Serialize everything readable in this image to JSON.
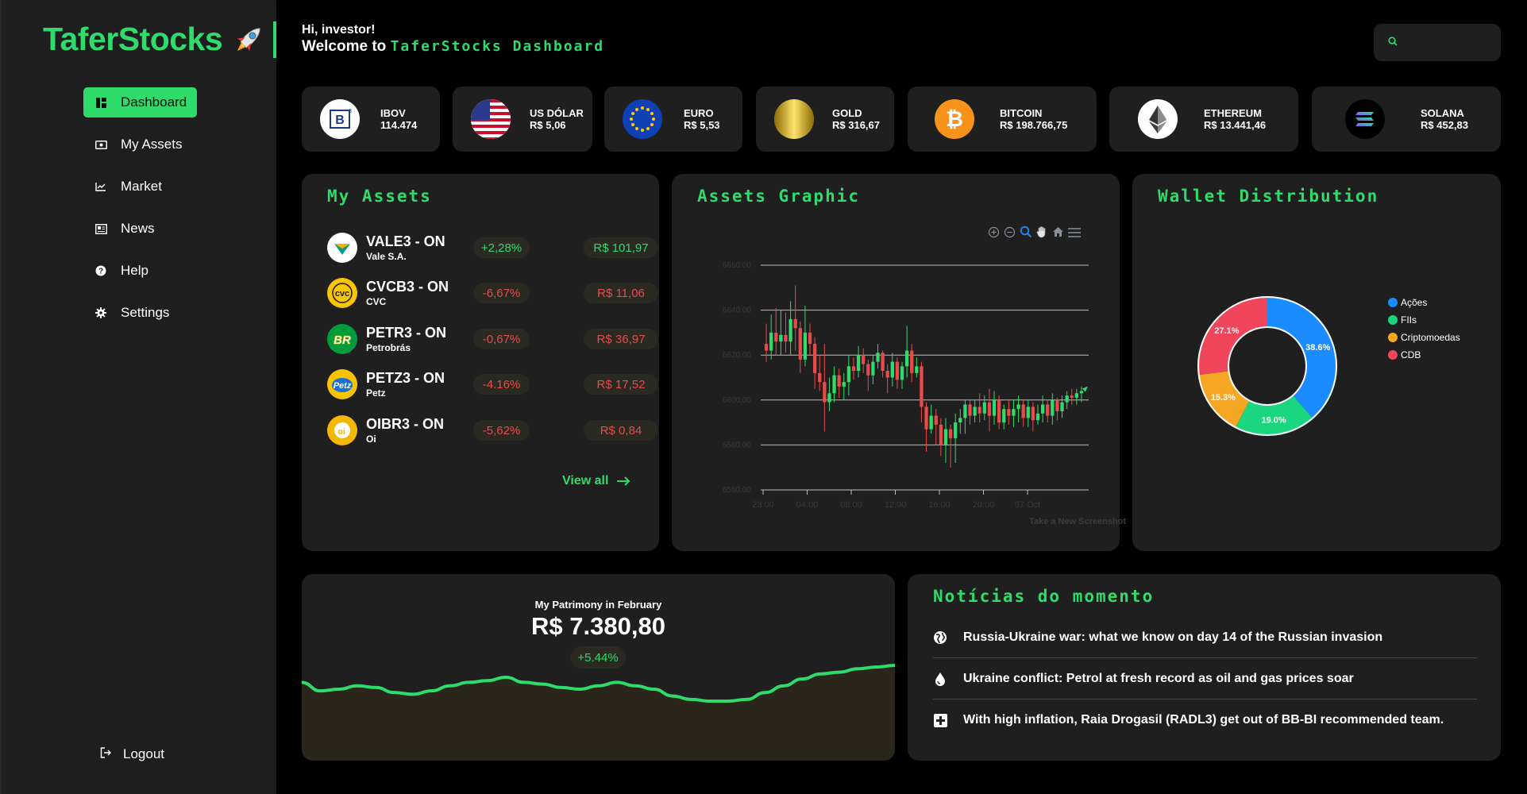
{
  "brand": {
    "name": "TaferStocks"
  },
  "nav": {
    "items": [
      {
        "label": "Dashboard",
        "icon": "dashboard-icon",
        "active": true
      },
      {
        "label": "My Assets",
        "icon": "wallet-icon"
      },
      {
        "label": "Market",
        "icon": "chart-line-icon"
      },
      {
        "label": "News",
        "icon": "newspaper-icon"
      },
      {
        "label": "Help",
        "icon": "help-icon"
      },
      {
        "label": "Settings",
        "icon": "gear-icon"
      }
    ],
    "logout": "Logout"
  },
  "header": {
    "greeting": "Hi, investor!",
    "welcome_prefix": "Welcome to ",
    "welcome_accent": "TaferStocks Dashboard"
  },
  "search": {
    "placeholder": ""
  },
  "tickers": [
    {
      "name": "IBOV",
      "value": "114.474"
    },
    {
      "name": "US DÓLAR",
      "value": "R$ 5,06"
    },
    {
      "name": "EURO",
      "value": "R$ 5,53"
    },
    {
      "name": "GOLD",
      "value": "R$ 316,67"
    },
    {
      "name": "BITCOIN",
      "value": "R$ 198.766,75"
    },
    {
      "name": "ETHEREUM",
      "value": "R$ 13.441,46"
    },
    {
      "name": "SOLANA",
      "value": "R$ 452,83"
    }
  ],
  "my_assets": {
    "title": "My Assets",
    "rows": [
      {
        "ticker": "VALE3 - ON",
        "company": "Vale S.A.",
        "change": "+2,28%",
        "price": "R$ 101,97",
        "trend": "up"
      },
      {
        "ticker": "CVCB3 - ON",
        "company": "CVC",
        "change": "-6,67%",
        "price": "R$ 11,06",
        "trend": "down"
      },
      {
        "ticker": "PETR3 - ON",
        "company": "Petrobrás",
        "change": "-0,67%",
        "price": "R$ 36,97",
        "trend": "down"
      },
      {
        "ticker": "PETZ3 - ON",
        "company": "Petz",
        "change": "-4.16%",
        "price": "R$ 17,52",
        "trend": "down"
      },
      {
        "ticker": "OIBR3 - ON",
        "company": "Oi",
        "change": "-5,62%",
        "price": "R$ 0,84",
        "trend": "down"
      }
    ],
    "view_all": "View all"
  },
  "assets_graphic": {
    "title": "Assets Graphic",
    "toolbar": [
      "zoom-in-icon",
      "zoom-out-icon",
      "selection-zoom-icon",
      "pan-hand-icon",
      "home-icon",
      "menu-icon"
    ],
    "watermark": "Take a New Screenshot",
    "chart_data": {
      "type": "candlestick",
      "y_ticks": [
        "6560.00",
        "6580.00",
        "6600.00",
        "6620.00",
        "6640.00",
        "6660.00"
      ],
      "x_ticks": [
        "23:00",
        "04:00",
        "08:00",
        "12:00",
        "16:00",
        "20:00",
        "07 Oct"
      ],
      "ylim": [
        6560,
        6660
      ],
      "up_color": "#2fdc6b",
      "down_color": "#e84b4b",
      "candles": [
        [
          6625,
          6622,
          6634,
          6617
        ],
        [
          6622,
          6630,
          6638,
          6618
        ],
        [
          6630,
          6626,
          6641,
          6620
        ],
        [
          6626,
          6629,
          6640,
          6620
        ],
        [
          6629,
          6626,
          6639,
          6621
        ],
        [
          6626,
          6636,
          6644,
          6620
        ],
        [
          6636,
          6632,
          6651,
          6622
        ],
        [
          6632,
          6618,
          6635,
          6612
        ],
        [
          6618,
          6630,
          6642,
          6615
        ],
        [
          6630,
          6625,
          6634,
          6620
        ],
        [
          6625,
          6612,
          6628,
          6605
        ],
        [
          6612,
          6608,
          6620,
          6604
        ],
        [
          6608,
          6599,
          6625,
          6586
        ],
        [
          6599,
          6603,
          6610,
          6595
        ],
        [
          6603,
          6611,
          6615,
          6599
        ],
        [
          6611,
          6606,
          6614,
          6601
        ],
        [
          6606,
          6608,
          6612,
          6600
        ],
        [
          6608,
          6615,
          6620,
          6602
        ],
        [
          6615,
          6613,
          6619,
          6609
        ],
        [
          6613,
          6620,
          6624,
          6610
        ],
        [
          6620,
          6616,
          6623,
          6612
        ],
        [
          6616,
          6611,
          6618,
          6604
        ],
        [
          6611,
          6617,
          6620,
          6607
        ],
        [
          6617,
          6621,
          6625,
          6614
        ],
        [
          6621,
          6613,
          6622,
          6610
        ],
        [
          6613,
          6610,
          6616,
          6603
        ],
        [
          6610,
          6617,
          6621,
          6606
        ],
        [
          6617,
          6609,
          6619,
          6605
        ],
        [
          6609,
          6615,
          6617,
          6605
        ],
        [
          6615,
          6622,
          6633,
          6610
        ],
        [
          6622,
          6612,
          6625,
          6608
        ],
        [
          6612,
          6615,
          6619,
          6610
        ],
        [
          6615,
          6597,
          6617,
          6590
        ],
        [
          6597,
          6587,
          6599,
          6577
        ],
        [
          6587,
          6593,
          6598,
          6585
        ],
        [
          6593,
          6589,
          6596,
          6580
        ],
        [
          6589,
          6580,
          6592,
          6575
        ],
        [
          6580,
          6587,
          6592,
          6572
        ],
        [
          6587,
          6583,
          6589,
          6570
        ],
        [
          6583,
          6590,
          6594,
          6572
        ],
        [
          6590,
          6592,
          6596,
          6585
        ],
        [
          6592,
          6598,
          6600,
          6585
        ],
        [
          6598,
          6593,
          6600,
          6589
        ],
        [
          6593,
          6597,
          6600,
          6590
        ],
        [
          6597,
          6594,
          6603,
          6590
        ],
        [
          6594,
          6599,
          6602,
          6591
        ],
        [
          6599,
          6593,
          6605,
          6586
        ],
        [
          6593,
          6600,
          6604,
          6589
        ],
        [
          6600,
          6590,
          6602,
          6587
        ],
        [
          6590,
          6596,
          6598,
          6587
        ],
        [
          6596,
          6593,
          6600,
          6589
        ],
        [
          6593,
          6596,
          6600,
          6588
        ],
        [
          6596,
          6598,
          6602,
          6590
        ],
        [
          6598,
          6592,
          6600,
          6588
        ],
        [
          6592,
          6597,
          6600,
          6588
        ],
        [
          6597,
          6591,
          6599,
          6586
        ],
        [
          6591,
          6594,
          6598,
          6589
        ],
        [
          6594,
          6598,
          6602,
          6590
        ],
        [
          6598,
          6593,
          6600,
          6590
        ],
        [
          6593,
          6600,
          6603,
          6589
        ],
        [
          6600,
          6595,
          6601,
          6591
        ],
        [
          6595,
          6599,
          6602,
          6592
        ],
        [
          6599,
          6602,
          6604,
          6596
        ],
        [
          6602,
          6601,
          6605,
          6598
        ],
        [
          6601,
          6603,
          6605,
          6598
        ],
        [
          6603,
          6604,
          6606,
          6599
        ]
      ]
    }
  },
  "wallet": {
    "title": "Wallet Distribution",
    "chart_data": {
      "type": "donut",
      "slices": [
        {
          "label": "Ações",
          "value": 38.6,
          "display": "38.6%",
          "color": "#1a8cff"
        },
        {
          "label": "FIIs",
          "value": 19.0,
          "display": "19.0%",
          "color": "#19d67f"
        },
        {
          "label": "Criptomoedas",
          "value": 15.3,
          "display": "15.3%",
          "color": "#f5a623"
        },
        {
          "label": "CDB",
          "value": 27.1,
          "display": "27.1%",
          "color": "#f0455a"
        }
      ]
    }
  },
  "patrimony": {
    "caption": "My Patrimony in February",
    "value": "R$ 7.380,80",
    "change": "+5.44%",
    "chart_data": {
      "type": "area",
      "values": [
        50,
        45,
        46,
        48,
        47,
        44,
        43,
        45,
        48,
        50,
        51,
        53,
        50,
        49,
        47,
        46,
        48,
        50,
        48,
        46,
        42,
        40,
        39,
        39,
        40,
        44,
        48,
        52,
        55,
        56,
        58,
        59,
        60
      ]
    }
  },
  "news": {
    "title": "Notícias do momento",
    "items": [
      {
        "icon": "globe-icon",
        "text": "Russia-Ukraine war: what we know on day 14 of the Russian invasion"
      },
      {
        "icon": "oil-drop-icon",
        "text": "Ukraine conflict: Petrol at fresh record as oil and gas prices soar"
      },
      {
        "icon": "medical-cross-icon",
        "text": "With high inflation, Raia Drogasil (RADL3) get out of BB-BI recommended team."
      }
    ]
  },
  "colors": {
    "accent": "#2fdc6b",
    "card": "#1f1f1f",
    "down": "#e84b4b",
    "up": "#2fdc6b"
  }
}
